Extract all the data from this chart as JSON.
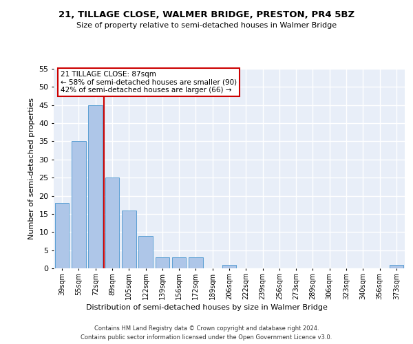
{
  "title": "21, TILLAGE CLOSE, WALMER BRIDGE, PRESTON, PR4 5BZ",
  "subtitle": "Size of property relative to semi-detached houses in Walmer Bridge",
  "xlabel": "Distribution of semi-detached houses by size in Walmer Bridge",
  "ylabel": "Number of semi-detached properties",
  "categories": [
    "39sqm",
    "55sqm",
    "72sqm",
    "89sqm",
    "105sqm",
    "122sqm",
    "139sqm",
    "156sqm",
    "172sqm",
    "189sqm",
    "206sqm",
    "222sqm",
    "239sqm",
    "256sqm",
    "273sqm",
    "289sqm",
    "306sqm",
    "323sqm",
    "340sqm",
    "356sqm",
    "373sqm"
  ],
  "values": [
    18,
    35,
    45,
    25,
    16,
    9,
    3,
    3,
    3,
    0,
    1,
    0,
    0,
    0,
    0,
    0,
    0,
    0,
    0,
    0,
    1
  ],
  "bar_color": "#aec6e8",
  "bar_edge_color": "#5a9fd4",
  "annotation_line1": "21 TILLAGE CLOSE: 87sqm",
  "annotation_line2": "← 58% of semi-detached houses are smaller (90)",
  "annotation_line3": "42% of semi-detached houses are larger (66) →",
  "annotation_box_color": "#ffffff",
  "annotation_box_edge": "#cc0000",
  "vline_color": "#cc0000",
  "ylim": [
    0,
    55
  ],
  "yticks": [
    0,
    5,
    10,
    15,
    20,
    25,
    30,
    35,
    40,
    45,
    50,
    55
  ],
  "background_color": "#e8eef8",
  "grid_color": "#ffffff",
  "footer_line1": "Contains HM Land Registry data © Crown copyright and database right 2024.",
  "footer_line2": "Contains public sector information licensed under the Open Government Licence v3.0."
}
